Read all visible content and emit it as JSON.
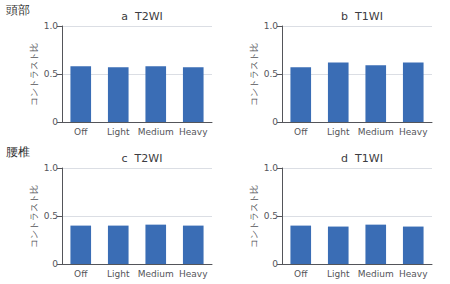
{
  "chart_data": [
    {
      "type": "bar",
      "title": "a  T2WI",
      "annotation": "頭部",
      "ylabel": "コントラスト比",
      "categories": [
        "Off",
        "Light",
        "Medium",
        "Heavy"
      ],
      "values": [
        0.58,
        0.57,
        0.58,
        0.57
      ],
      "color": "#3a6db5",
      "ylim": [
        0,
        1.0
      ],
      "yticks": [
        0,
        0.5,
        {
          "value": 1.0,
          "label": "1.0"
        }
      ],
      "grid": true
    },
    {
      "type": "bar",
      "title": "b  T1WI",
      "ylabel": "コントラスト比",
      "categories": [
        "Off",
        "Light",
        "Medium",
        "Heavy"
      ],
      "values": [
        0.57,
        0.62,
        0.59,
        0.62
      ],
      "color": "#3a6db5",
      "ylim": [
        0,
        1.0
      ],
      "yticks": [
        0,
        0.5,
        {
          "value": 1.0,
          "label": "1.0"
        }
      ],
      "grid": true
    },
    {
      "type": "bar",
      "title": "c  T2WI",
      "annotation": "腰椎",
      "ylabel": "コントラスト比",
      "categories": [
        "Off",
        "Light",
        "Medium",
        "Heavy"
      ],
      "values": [
        0.4,
        0.4,
        0.41,
        0.4
      ],
      "color": "#3a6db5",
      "ylim": [
        0,
        1.0
      ],
      "yticks": [
        0,
        0.5,
        {
          "value": 1.0,
          "label": "1.0"
        }
      ],
      "grid": true
    },
    {
      "type": "bar",
      "title": "d  T1WI",
      "ylabel": "コントラスト比",
      "categories": [
        "Off",
        "Light",
        "Medium",
        "Heavy"
      ],
      "values": [
        0.4,
        0.39,
        0.41,
        0.39
      ],
      "color": "#3a6db5",
      "ylim": [
        0,
        1.0
      ],
      "yticks": [
        0,
        0.5,
        {
          "value": 1.0,
          "label": "1.0"
        }
      ],
      "grid": true
    }
  ]
}
